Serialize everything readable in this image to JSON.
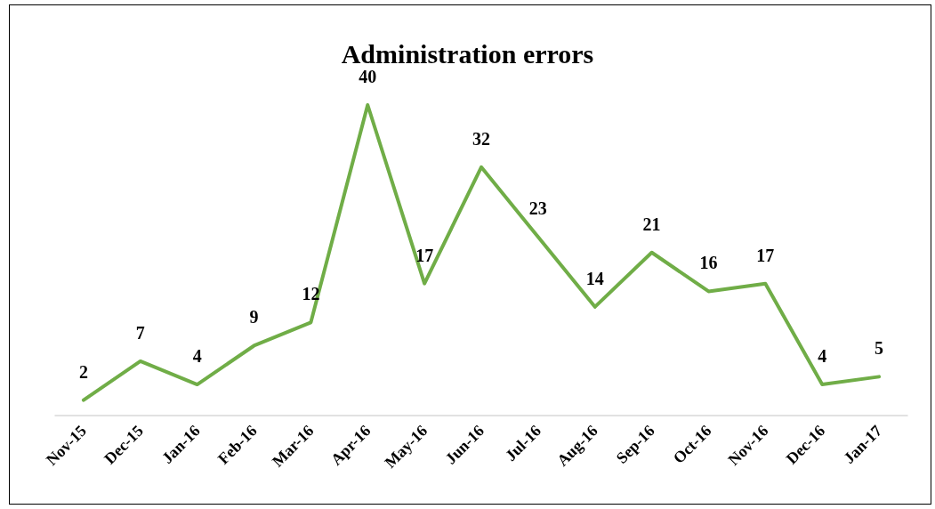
{
  "chart_data": {
    "type": "line",
    "title": "Administration errors",
    "categories": [
      "Nov-15",
      "Dec-15",
      "Jan-16",
      "Feb-16",
      "Mar-16",
      "Apr-16",
      "May-16",
      "Jun-16",
      "Jul-16",
      "Aug-16",
      "Sep-16",
      "Oct-16",
      "Nov-16",
      "Dec-16",
      "Jan-17"
    ],
    "series": [
      {
        "color": "#70ad47",
        "values": [
          2,
          7,
          4,
          9,
          12,
          40,
          17,
          32,
          23,
          14,
          21,
          16,
          17,
          4,
          5
        ]
      }
    ],
    "tick_labels": "x",
    "data_labels": true,
    "grid": false,
    "marker": "none",
    "line_style": "solid"
  }
}
